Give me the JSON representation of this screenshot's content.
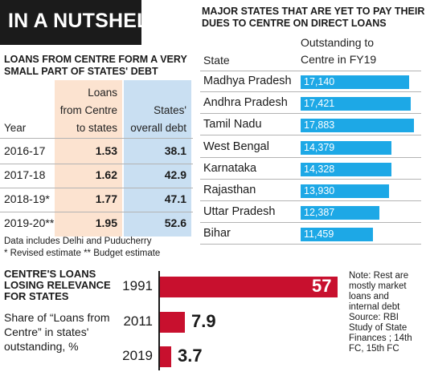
{
  "banner": {
    "title": "IN A NUTSHELL"
  },
  "loans_table": {
    "heading_line1": "LOANS FROM CENTRE FORM A VERY",
    "heading_line2": "SMALL PART OF STATES' DEBT",
    "col_year": "Year",
    "col_loans_line1": "Loans",
    "col_loans_line2": "from Centre",
    "col_loans_line3": "to states",
    "col_debt_line1": "States'",
    "col_debt_line2": "overall debt",
    "loans_bg": "#fce3d0",
    "debt_bg": "#c9dff2",
    "rows": [
      {
        "year": "2016-17",
        "loans": "1.53",
        "debt": "38.1"
      },
      {
        "year": "2017-18",
        "loans": "1.62",
        "debt": "42.9"
      },
      {
        "year": "2018-19*",
        "loans": "1.77",
        "debt": "47.1"
      },
      {
        "year": "2019-20**",
        "loans": "1.95",
        "debt": "52.6"
      }
    ],
    "note1": "Data includes Delhi and Puducherry",
    "note2": "* Revised estimate ** Budget estimate"
  },
  "states_table": {
    "heading_line1": "MAJOR STATES THAT ARE YET TO PAY THEIR",
    "heading_line2": "DUES TO CENTRE ON DIRECT LOANS",
    "col_state": "State",
    "col_out_line1": "Outstanding to",
    "col_out_line2": "Centre in FY19",
    "bar_color": "#1da8e6",
    "rows": [
      {
        "state": "Madhya Pradesh",
        "value": 17140,
        "label": "17,140"
      },
      {
        "state": "Andhra Pradesh",
        "value": 17421,
        "label": "17,421"
      },
      {
        "state": "Tamil Nadu",
        "value": 17883,
        "label": "17,883"
      },
      {
        "state": "West Bengal",
        "value": 14379,
        "label": "14,379"
      },
      {
        "state": "Karnataka",
        "value": 14328,
        "label": "14,328"
      },
      {
        "state": "Rajasthan",
        "value": 13930,
        "label": "13,930"
      },
      {
        "state": "Uttar Pradesh",
        "value": 12387,
        "label": "12,387"
      },
      {
        "state": "Bihar",
        "value": 11459,
        "label": "11,459"
      }
    ]
  },
  "share_chart": {
    "heading_line1": "CENTRE'S LOANS",
    "heading_line2": "LOSING RELEVANCE",
    "heading_line3": "FOR STATES",
    "sub_line1": "Share of “Loans from",
    "sub_line2": "Centre” in states'",
    "sub_line3": "outstanding, %",
    "bar_color": "#c8102e",
    "note_lines": [
      "Note: Rest are",
      "mostly market",
      "loans and",
      "internal debt",
      "Source: RBI",
      "Study of State",
      "Finances ; 14th",
      "FC, 15th FC"
    ]
  },
  "chart_data": [
    {
      "type": "table",
      "title": "LOANS FROM CENTRE FORM A VERY SMALL PART OF STATES' DEBT",
      "columns": [
        "Year",
        "Loans from Centre to states",
        "States' overall debt"
      ],
      "rows": [
        [
          "2016-17",
          1.53,
          38.1
        ],
        [
          "2017-18",
          1.62,
          42.9
        ],
        [
          "2018-19*",
          1.77,
          47.1
        ],
        [
          "2019-20**",
          1.95,
          52.6
        ]
      ]
    },
    {
      "type": "bar",
      "title": "MAJOR STATES THAT ARE YET TO PAY THEIR DUES TO CENTRE ON DIRECT LOANS",
      "categories": [
        "Madhya Pradesh",
        "Andhra Pradesh",
        "Tamil Nadu",
        "West Bengal",
        "Karnataka",
        "Rajasthan",
        "Uttar Pradesh",
        "Bihar"
      ],
      "values": [
        17140,
        17421,
        17883,
        14379,
        14328,
        13930,
        12387,
        11459
      ],
      "xlabel": "State",
      "ylabel": "Outstanding to Centre in FY19"
    },
    {
      "type": "bar",
      "title": "CENTRE'S LOANS LOSING RELEVANCE FOR STATES",
      "categories": [
        "1991",
        "2011",
        "2019"
      ],
      "values": [
        57,
        7.9,
        3.7
      ],
      "labels": [
        "57",
        "7.9",
        "3.7"
      ],
      "ylabel": "Share of “Loans from Centre” in states' outstanding, %"
    }
  ]
}
